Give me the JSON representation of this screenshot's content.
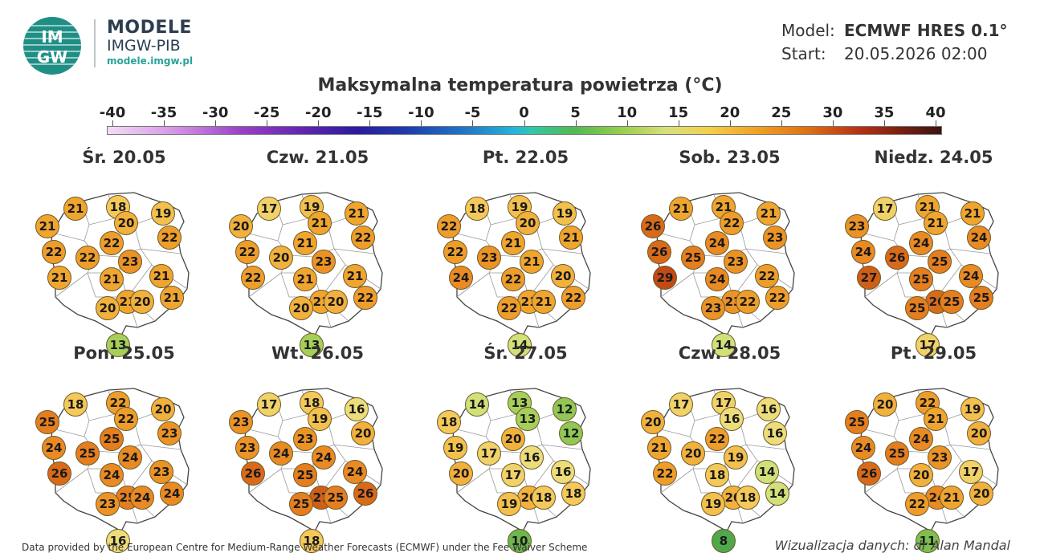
{
  "brand": {
    "name": "MODELE",
    "org": "IMGW-PIB",
    "url": "modele.imgw.pl",
    "logo_text_top": "IM",
    "logo_text_bottom": "GW"
  },
  "meta": {
    "model_label": "Model:",
    "model_value": "ECMWF HRES 0.1°",
    "start_label": "Start:",
    "start_value": "20.05.2026 02:00"
  },
  "title": "Maksymalna temperatura powietrza (°C)",
  "colorbar": {
    "ticks": [
      "-40",
      "-35",
      "-30",
      "-25",
      "-20",
      "-15",
      "-10",
      "-5",
      "0",
      "5",
      "10",
      "15",
      "20",
      "25",
      "30",
      "35",
      "40"
    ]
  },
  "panels": [
    {
      "date": "Śr. 20.05",
      "values": [
        21,
        18,
        19,
        21,
        20,
        22,
        22,
        22,
        22,
        23,
        21,
        21,
        21,
        21,
        20,
        20,
        21,
        13
      ]
    },
    {
      "date": "Czw. 21.05",
      "values": [
        17,
        19,
        21,
        20,
        21,
        22,
        22,
        20,
        21,
        23,
        22,
        21,
        21,
        21,
        20,
        20,
        22,
        13
      ]
    },
    {
      "date": "Pt. 22.05",
      "values": [
        18,
        19,
        19,
        22,
        20,
        21,
        22,
        23,
        21,
        21,
        24,
        22,
        21,
        20,
        22,
        21,
        22,
        14
      ]
    },
    {
      "date": "Sob. 23.05",
      "values": [
        21,
        21,
        21,
        26,
        22,
        23,
        26,
        25,
        24,
        23,
        29,
        24,
        23,
        22,
        23,
        22,
        22,
        14
      ]
    },
    {
      "date": "Niedz. 24.05",
      "values": [
        17,
        21,
        21,
        23,
        21,
        24,
        24,
        26,
        24,
        25,
        27,
        25,
        26,
        24,
        25,
        25,
        25,
        17
      ]
    },
    {
      "date": "Pon. 25.05",
      "values": [
        18,
        22,
        20,
        25,
        22,
        23,
        24,
        25,
        25,
        24,
        26,
        24,
        25,
        23,
        23,
        24,
        24,
        16
      ]
    },
    {
      "date": "Wt. 26.05",
      "values": [
        17,
        18,
        16,
        23,
        19,
        20,
        23,
        24,
        23,
        24,
        26,
        25,
        27,
        24,
        25,
        25,
        26,
        18
      ]
    },
    {
      "date": "Śr. 27.05",
      "values": [
        14,
        13,
        12,
        18,
        13,
        12,
        19,
        17,
        20,
        16,
        20,
        17,
        20,
        16,
        19,
        18,
        18,
        10
      ]
    },
    {
      "date": "Czw. 28.05",
      "values": [
        17,
        17,
        16,
        20,
        16,
        16,
        21,
        20,
        22,
        19,
        22,
        18,
        20,
        14,
        19,
        18,
        14,
        8
      ]
    },
    {
      "date": "Pt. 29.05",
      "values": [
        20,
        22,
        19,
        25,
        21,
        20,
        24,
        25,
        24,
        23,
        26,
        20,
        24,
        17,
        22,
        21,
        20,
        11
      ]
    }
  ],
  "footer": {
    "left": "Data provided by the European Centre for Medium-Range Weather Forecasts (ECMWF) under the Fee Waiver Scheme",
    "right": "Wizualizacja danych: dr Alan Mandal"
  }
}
